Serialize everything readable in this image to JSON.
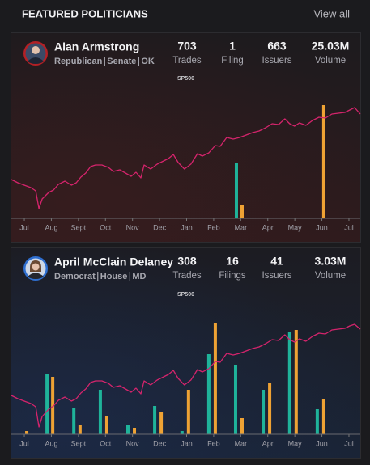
{
  "header": {
    "title": "FEATURED POLITICIANS",
    "link": "View all"
  },
  "politicians": [
    {
      "name": "Alan Armstrong",
      "party": "Republican",
      "chamber": "Senate",
      "state": "OK",
      "stats": [
        {
          "value": "703",
          "label": "Trades"
        },
        {
          "value": "1",
          "label": "Filing"
        },
        {
          "value": "663",
          "label": "Issuers"
        },
        {
          "value": "25.03M",
          "label": "Volume"
        }
      ],
      "chart_data": {
        "type": "combo",
        "xlim": [
          -0.48,
          12.42
        ],
        "ylim": [
          0,
          170
        ],
        "xticks": [
          {
            "value": 0,
            "label": "Jul"
          },
          {
            "value": 1,
            "label": "Aug"
          },
          {
            "value": 2,
            "label": "Sept"
          },
          {
            "value": 3,
            "label": "Oct"
          },
          {
            "value": 4,
            "label": "Nov"
          },
          {
            "value": 5,
            "label": "Dec"
          },
          {
            "value": 6,
            "label": "Jan"
          },
          {
            "value": 7,
            "label": "Feb"
          },
          {
            "value": 8,
            "label": "Mar"
          },
          {
            "value": 9,
            "label": "Apr"
          },
          {
            "value": 10,
            "label": "May"
          },
          {
            "value": 11,
            "label": "Jun"
          },
          {
            "value": 12,
            "label": "Jul"
          }
        ],
        "series": [
          {
            "name": "SP500",
            "type": "line",
            "color": "#d4246c",
            "x": [
              -0.48,
              -0.24,
              0,
              0.24,
              0.42,
              0.54,
              0.66,
              0.9,
              1.08,
              1.26,
              1.5,
              1.74,
              1.92,
              2.09,
              2.27,
              2.45,
              2.63,
              2.87,
              3.11,
              3.29,
              3.53,
              3.74,
              3.95,
              4.13,
              4.31,
              4.43,
              4.67,
              4.91,
              5.09,
              5.33,
              5.51,
              5.69,
              5.92,
              6.16,
              6.4,
              6.58,
              6.82,
              7.06,
              7.24,
              7.48,
              7.72,
              7.96,
              8.2,
              8.44,
              8.68,
              8.92,
              9.16,
              9.4,
              9.63,
              9.81,
              9.99,
              10.17,
              10.41,
              10.65,
              10.89,
              11.13,
              11.37,
              11.61,
              11.85,
              12.03,
              12.21,
              12.42
            ],
            "values": [
              48,
              44,
              41,
              38,
              34,
              12,
              24,
              32,
              35,
              42,
              46,
              41,
              44,
              51,
              56,
              64,
              66,
              66,
              63,
              58,
              60,
              56,
              52,
              57,
              50,
              66,
              61,
              67,
              70,
              74,
              79,
              69,
              61,
              67,
              80,
              77,
              81,
              90,
              89,
              100,
              98,
              100,
              103,
              106,
              108,
              112,
              117,
              116,
              123,
              117,
              114,
              118,
              115,
              121,
              125,
              124,
              129,
              130,
              131,
              134,
              137,
              129
            ]
          },
          {
            "type": "bar",
            "color": "#1fb39a",
            "x": [
              7.84
            ],
            "values": [
              69
            ]
          },
          {
            "type": "bar",
            "color": "#eea234",
            "x": [
              8.05,
              11.07
            ],
            "values": [
              17,
              140
            ]
          }
        ]
      }
    },
    {
      "name": "April McClain Delaney",
      "party": "Democrat",
      "chamber": "House",
      "state": "MD",
      "stats": [
        {
          "value": "308",
          "label": "Trades"
        },
        {
          "value": "16",
          "label": "Filings"
        },
        {
          "value": "41",
          "label": "Issuers"
        },
        {
          "value": "3.03M",
          "label": "Volume"
        }
      ],
      "chart_data": {
        "type": "combo",
        "xlim": [
          -0.48,
          12.42
        ],
        "ylim": [
          0,
          170
        ],
        "xticks": [
          {
            "value": 0,
            "label": "Jul"
          },
          {
            "value": 1,
            "label": "Aug"
          },
          {
            "value": 2,
            "label": "Sept"
          },
          {
            "value": 3,
            "label": "Oct"
          },
          {
            "value": 4,
            "label": "Nov"
          },
          {
            "value": 5,
            "label": "Dec"
          },
          {
            "value": 6,
            "label": "Jan"
          },
          {
            "value": 7,
            "label": "Feb"
          },
          {
            "value": 8,
            "label": "Mar"
          },
          {
            "value": 9,
            "label": "Apr"
          },
          {
            "value": 10,
            "label": "May"
          },
          {
            "value": 11,
            "label": "Jun"
          },
          {
            "value": 12,
            "label": "Jul"
          }
        ],
        "series": [
          {
            "name": "SP500",
            "type": "line",
            "color": "#d4246c",
            "x": [
              -0.48,
              -0.24,
              0,
              0.24,
              0.42,
              0.54,
              0.66,
              0.9,
              1.08,
              1.26,
              1.5,
              1.74,
              1.92,
              2.09,
              2.27,
              2.45,
              2.63,
              2.87,
              3.11,
              3.29,
              3.53,
              3.74,
              3.95,
              4.13,
              4.31,
              4.43,
              4.67,
              4.91,
              5.09,
              5.33,
              5.51,
              5.69,
              5.92,
              6.16,
              6.4,
              6.58,
              6.82,
              7.06,
              7.24,
              7.48,
              7.72,
              7.96,
              8.2,
              8.44,
              8.68,
              8.92,
              9.16,
              9.4,
              9.63,
              9.81,
              9.99,
              10.17,
              10.41,
              10.65,
              10.89,
              11.13,
              11.37,
              11.61,
              11.85,
              12.03,
              12.21,
              12.42
            ],
            "values": [
              48,
              44,
              41,
              38,
              34,
              9,
              22,
              31,
              35,
              42,
              46,
              41,
              44,
              51,
              56,
              64,
              66,
              66,
              63,
              58,
              60,
              56,
              52,
              57,
              50,
              66,
              61,
              67,
              70,
              74,
              79,
              69,
              61,
              67,
              80,
              77,
              81,
              90,
              89,
              100,
              98,
              100,
              103,
              106,
              108,
              112,
              117,
              116,
              123,
              117,
              114,
              118,
              115,
              121,
              125,
              124,
              129,
              130,
              131,
              134,
              136,
              130
            ]
          },
          {
            "type": "bar",
            "color": "#1fb39a",
            "x": [
              0.84,
              1.83,
              2.81,
              3.83,
              4.82,
              5.83,
              6.82,
              7.81,
              8.83,
              9.81,
              10.83
            ],
            "values": [
              75,
              32,
              55,
              12,
              35,
              4,
              99,
              86,
              55,
              126,
              31
            ]
          },
          {
            "type": "bar",
            "color": "#eea234",
            "x": [
              0.09,
              1.05,
              2.06,
              3.05,
              4.07,
              5.06,
              6.07,
              7.06,
              8.05,
              9.07,
              10.05,
              11.07
            ],
            "values": [
              4,
              71,
              12,
              23,
              8,
              27,
              55,
              137,
              20,
              63,
              129,
              43
            ]
          }
        ]
      }
    }
  ]
}
